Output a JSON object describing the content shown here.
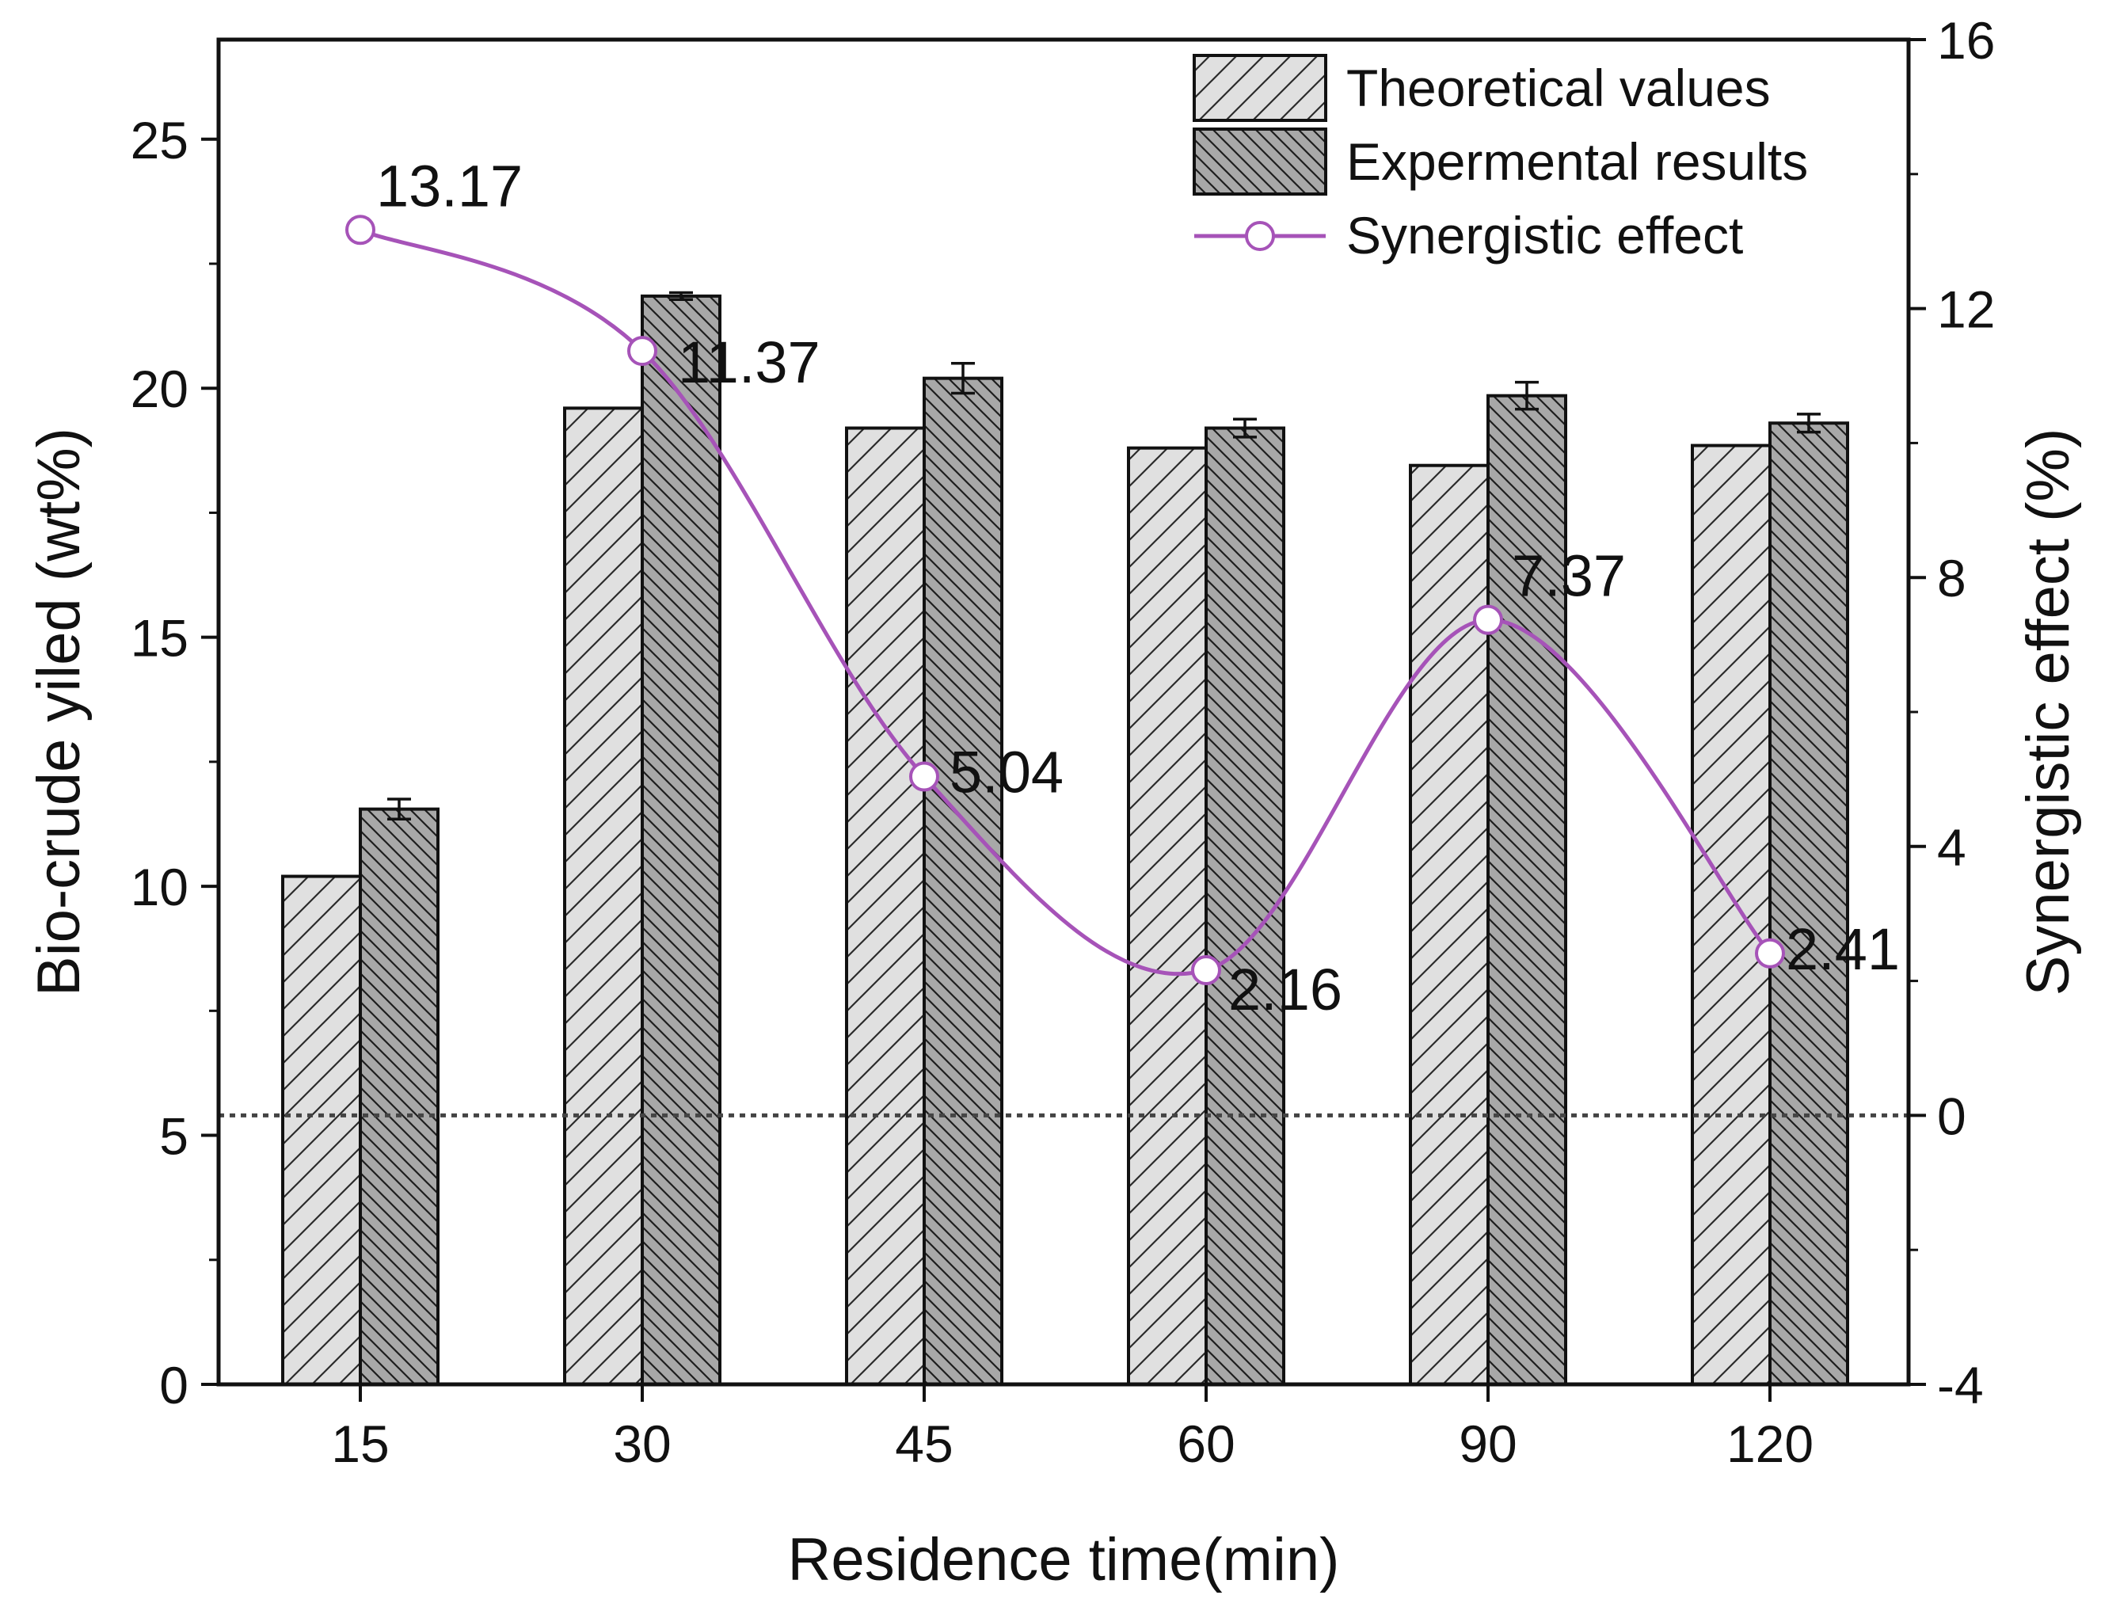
{
  "chart_data": {
    "type": "bar",
    "title": "",
    "xlabel": "Residence time(min)",
    "ylabel": "Bio-crude yiled (wt%)",
    "y2label": "Synergistic effect (%)",
    "categories": [
      "15",
      "30",
      "45",
      "60",
      "90",
      "120"
    ],
    "ylim": [
      0,
      27
    ],
    "y2lim": [
      -4,
      16
    ],
    "yticks": [
      "0",
      "5",
      "10",
      "15",
      "20",
      "25"
    ],
    "y2ticks": [
      "-4",
      "0",
      "4",
      "8",
      "12",
      "16"
    ],
    "series": [
      {
        "name": "Theoretical values",
        "kind": "bar",
        "color": "#e0e0e0",
        "hatch": "sparse",
        "values": [
          10.2,
          19.6,
          19.2,
          18.8,
          18.45,
          18.85
        ]
      },
      {
        "name": "Expermental results",
        "kind": "bar",
        "color": "#a8a8a8",
        "hatch": "dense",
        "values": [
          11.55,
          21.85,
          20.2,
          19.2,
          19.85,
          19.3
        ],
        "errors": [
          0.2,
          0.07,
          0.3,
          0.18,
          0.27,
          0.18
        ]
      },
      {
        "name": "Synergistic effect",
        "kind": "line",
        "axis": "right",
        "color": "#a653b8",
        "values": [
          13.17,
          11.37,
          5.04,
          2.16,
          7.37,
          2.41
        ],
        "labels": [
          "13.17",
          "11.37",
          "5.04",
          "2.16",
          "7.37",
          "2.41"
        ]
      }
    ],
    "reference_line": {
      "axis": "right",
      "value": 0,
      "style": "dotted"
    },
    "legend": {
      "position": "top-right"
    }
  }
}
